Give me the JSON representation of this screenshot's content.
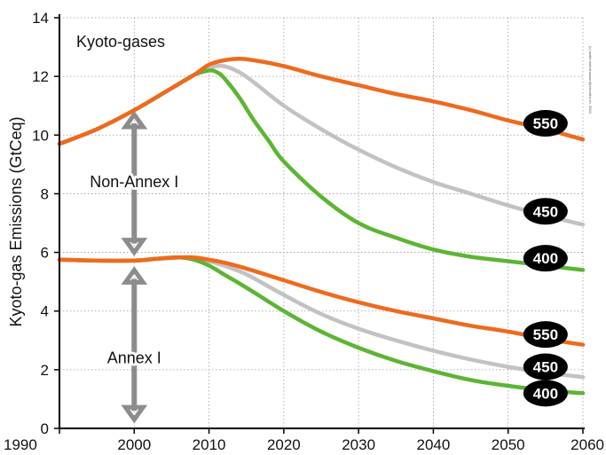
{
  "chart_data": {
    "type": "line",
    "title": "Kyoto-gases",
    "xlabel": "",
    "ylabel": "Kyoto-gas Emissions (GtCeq)",
    "xlim": [
      1990,
      2060
    ],
    "ylim": [
      0,
      14
    ],
    "xticks": [
      1990,
      2000,
      2010,
      2020,
      2030,
      2040,
      2050,
      2060
    ],
    "yticks": [
      0,
      2,
      4,
      6,
      8,
      10,
      12,
      14
    ],
    "grid": true,
    "credit": "(c) malte.meinshausen@env.ethz.ch, 2004",
    "annotations": [
      {
        "label": "Non-Annex I",
        "x": 2000,
        "y": 8.4
      },
      {
        "label": "Annex I",
        "x": 2000,
        "y": 2.4
      }
    ],
    "arrows": [
      {
        "x": 2000,
        "y_from": 6.0,
        "y_to": 10.7
      },
      {
        "x": 2000,
        "y_from": 0.3,
        "y_to": 5.4
      }
    ],
    "badges": [
      {
        "label": "550",
        "x": 2055,
        "y": 10.4
      },
      {
        "label": "450",
        "x": 2055,
        "y": 7.4
      },
      {
        "label": "400",
        "x": 2055,
        "y": 5.8
      },
      {
        "label": "550",
        "x": 2055,
        "y": 3.2
      },
      {
        "label": "450",
        "x": 2055,
        "y": 2.1
      },
      {
        "label": "400",
        "x": 2055,
        "y": 1.2
      }
    ],
    "series": [
      {
        "group": "total",
        "scenario": "450",
        "color": "#c2c2c2",
        "x": [
          1990,
          1995,
          2000,
          2005,
          2008,
          2010,
          2012,
          2014,
          2016,
          2020,
          2025,
          2030,
          2035,
          2040,
          2045,
          2050,
          2055,
          2060
        ],
        "y": [
          9.7,
          10.2,
          10.85,
          11.6,
          12.05,
          12.3,
          12.35,
          12.15,
          11.8,
          11.0,
          10.2,
          9.5,
          8.9,
          8.4,
          8.0,
          7.6,
          7.25,
          6.95
        ]
      },
      {
        "group": "total",
        "scenario": "400",
        "color": "#5cb533",
        "x": [
          1990,
          1995,
          2000,
          2005,
          2008,
          2010,
          2011,
          2012,
          2014,
          2016,
          2018,
          2020,
          2025,
          2030,
          2035,
          2040,
          2045,
          2050,
          2055,
          2060
        ],
        "y": [
          9.7,
          10.2,
          10.85,
          11.6,
          12.05,
          12.2,
          12.15,
          11.95,
          11.3,
          10.5,
          9.8,
          9.1,
          7.9,
          7.0,
          6.5,
          6.1,
          5.85,
          5.7,
          5.55,
          5.4
        ]
      },
      {
        "group": "total",
        "scenario": "550",
        "color": "#ef6a1e",
        "x": [
          1990,
          1995,
          2000,
          2005,
          2008,
          2010,
          2012,
          2014,
          2016,
          2020,
          2025,
          2030,
          2035,
          2040,
          2045,
          2050,
          2055,
          2060
        ],
        "y": [
          9.7,
          10.2,
          10.85,
          11.6,
          12.05,
          12.4,
          12.55,
          12.6,
          12.55,
          12.35,
          12.0,
          11.7,
          11.4,
          11.15,
          10.85,
          10.5,
          10.2,
          9.85
        ]
      },
      {
        "group": "annex1",
        "scenario": "450",
        "color": "#c2c2c2",
        "x": [
          1990,
          1995,
          2000,
          2003,
          2006,
          2008,
          2010,
          2012,
          2015,
          2020,
          2025,
          2030,
          2035,
          2040,
          2045,
          2050,
          2055,
          2060
        ],
        "y": [
          5.75,
          5.72,
          5.72,
          5.78,
          5.83,
          5.8,
          5.7,
          5.55,
          5.25,
          4.55,
          3.9,
          3.4,
          3.0,
          2.65,
          2.35,
          2.1,
          1.9,
          1.75
        ]
      },
      {
        "group": "annex1",
        "scenario": "400",
        "color": "#5cb533",
        "x": [
          1990,
          1995,
          2000,
          2003,
          2006,
          2008,
          2010,
          2012,
          2015,
          2020,
          2025,
          2030,
          2035,
          2040,
          2045,
          2050,
          2055,
          2060
        ],
        "y": [
          5.75,
          5.72,
          5.72,
          5.78,
          5.83,
          5.75,
          5.55,
          5.25,
          4.8,
          4.0,
          3.3,
          2.75,
          2.3,
          1.95,
          1.65,
          1.45,
          1.3,
          1.2
        ]
      },
      {
        "group": "annex1",
        "scenario": "550",
        "color": "#ef6a1e",
        "x": [
          1990,
          1995,
          2000,
          2003,
          2006,
          2008,
          2010,
          2012,
          2015,
          2020,
          2025,
          2030,
          2035,
          2040,
          2045,
          2050,
          2055,
          2060
        ],
        "y": [
          5.75,
          5.72,
          5.72,
          5.78,
          5.83,
          5.83,
          5.75,
          5.65,
          5.45,
          5.05,
          4.65,
          4.3,
          4.0,
          3.75,
          3.5,
          3.3,
          3.05,
          2.85
        ]
      }
    ]
  }
}
